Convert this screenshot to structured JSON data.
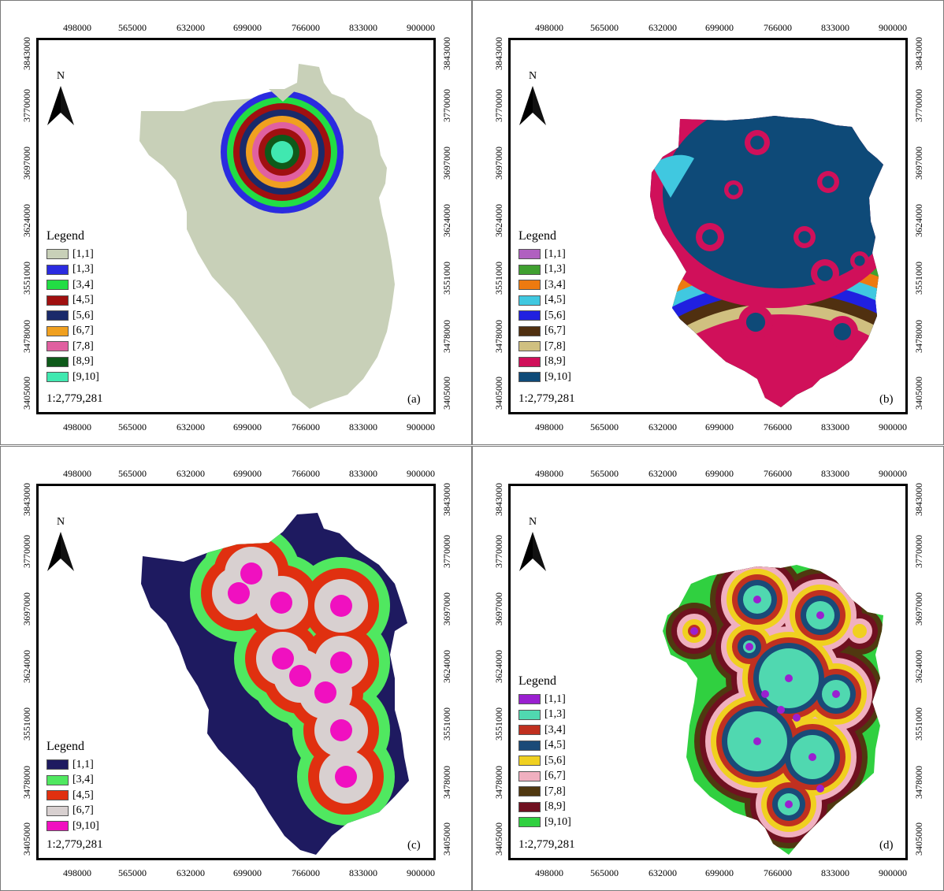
{
  "x_ticks": [
    "498000",
    "565000",
    "632000",
    "699000",
    "766000",
    "833000",
    "900000"
  ],
  "y_ticks": [
    "3843000",
    "3770000",
    "3697000",
    "3624000",
    "3551000",
    "3478000",
    "3405000"
  ],
  "north_label": "N",
  "legend_title": "Legend",
  "panels": [
    {
      "label": "(a)",
      "scale": "1:2,779,281",
      "background_color": "#c8d0b8",
      "legend": [
        {
          "label": "[1,1]",
          "color": "#c8d0b8"
        },
        {
          "label": "[1,3]",
          "color": "#2b2be0"
        },
        {
          "label": "[3,4]",
          "color": "#22dd44"
        },
        {
          "label": "[4,5]",
          "color": "#a01010"
        },
        {
          "label": "[5,6]",
          "color": "#1a2a6a"
        },
        {
          "label": "[6,7]",
          "color": "#f0a020"
        },
        {
          "label": "[7,8]",
          "color": "#e060a0"
        },
        {
          "label": "[8,9]",
          "color": "#0e5a1a"
        },
        {
          "label": "[9,10]",
          "color": "#40e8b0"
        }
      ]
    },
    {
      "label": "(b)",
      "scale": "1:2,779,281",
      "background_color": "#0e4a78",
      "legend": [
        {
          "label": "[1,1]",
          "color": "#b060c0"
        },
        {
          "label": "[1,3]",
          "color": "#40a030"
        },
        {
          "label": "[3,4]",
          "color": "#ee7a10"
        },
        {
          "label": "[4,5]",
          "color": "#40c8e0"
        },
        {
          "label": "[5,6]",
          "color": "#2020e0"
        },
        {
          "label": "[6,7]",
          "color": "#503010"
        },
        {
          "label": "[7,8]",
          "color": "#d0c080"
        },
        {
          "label": "[8,9]",
          "color": "#d0105a"
        },
        {
          "label": "[9,10]",
          "color": "#0e4a78"
        }
      ]
    },
    {
      "label": "(c)",
      "scale": "1:2,779,281",
      "background_color": "#1e1a60",
      "legend": [
        {
          "label": "[1,1]",
          "color": "#1e1a60"
        },
        {
          "label": "[3,4]",
          "color": "#50e860"
        },
        {
          "label": "[4,5]",
          "color": "#e03010"
        },
        {
          "label": "[6,7]",
          "color": "#d8d0d0"
        },
        {
          "label": "[9,10]",
          "color": "#f010c0"
        }
      ]
    },
    {
      "label": "(d)",
      "scale": "1:2,779,281",
      "background_color": "#30d040",
      "legend": [
        {
          "label": "[1,1]",
          "color": "#9a20d0"
        },
        {
          "label": "[1,3]",
          "color": "#50d8b0"
        },
        {
          "label": "[3,4]",
          "color": "#c03020"
        },
        {
          "label": "[4,5]",
          "color": "#1a4a78"
        },
        {
          "label": "[5,6]",
          "color": "#f0d020"
        },
        {
          "label": "[6,7]",
          "color": "#f0b0c0"
        },
        {
          "label": "[7,8]",
          "color": "#503810"
        },
        {
          "label": "[8,9]",
          "color": "#701020"
        },
        {
          "label": "[9,10]",
          "color": "#30d040"
        }
      ]
    }
  ]
}
